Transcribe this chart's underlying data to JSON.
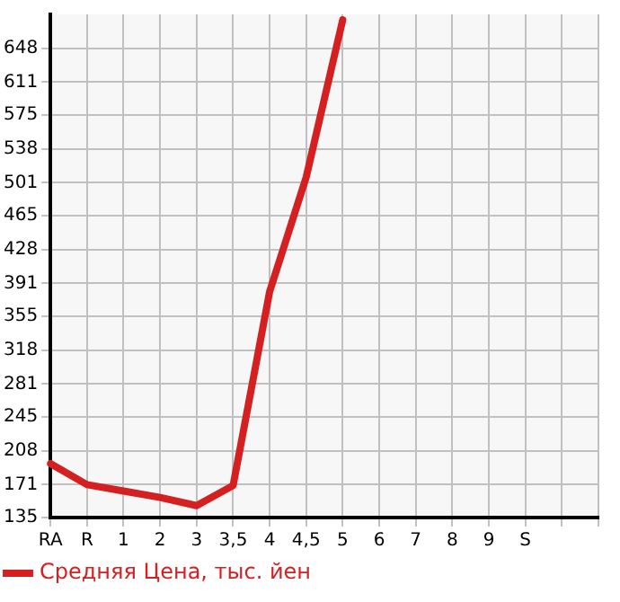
{
  "chart_data": {
    "type": "line",
    "categories": [
      "RA",
      "R",
      "1",
      "2",
      "3",
      "3,5",
      "4",
      "4,5",
      "5",
      "6",
      "7",
      "8",
      "9",
      "S",
      null,
      null
    ],
    "series": [
      {
        "name": "Средняя Цена, тыс. йен",
        "color": "#d42020",
        "values": [
          194,
          171,
          164,
          157,
          148,
          170,
          382,
          507,
          679,
          null,
          null,
          null,
          null,
          null,
          null,
          null
        ]
      }
    ],
    "ylim": [
      135,
      685
    ],
    "yticks": [
      135,
      171,
      208,
      245,
      281,
      318,
      355,
      391,
      428,
      465,
      501,
      538,
      575,
      611,
      648
    ],
    "grid": true,
    "legend": "bottom left",
    "marker": "none"
  }
}
